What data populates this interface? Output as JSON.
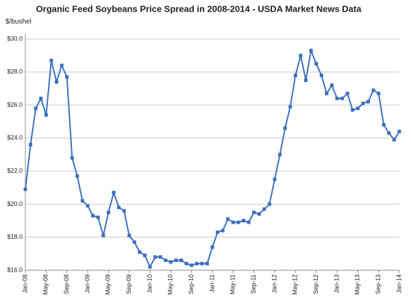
{
  "chart_data": {
    "type": "line",
    "title": "Organic Feed Soybeans Price Spread in 2008-2014 - USDA Market News Data",
    "y_axis_label": "$/bushel",
    "categories": [
      "Jan-08",
      null,
      null,
      null,
      "May-08",
      null,
      null,
      null,
      "Sep-08",
      null,
      null,
      null,
      "Jan-09",
      null,
      null,
      null,
      "May-09",
      null,
      null,
      null,
      "Sep-09",
      null,
      null,
      null,
      "Jan-10",
      null,
      null,
      null,
      "May-10",
      null,
      null,
      null,
      "Sep-10",
      null,
      null,
      null,
      "Jan-11",
      null,
      null,
      null,
      "May-11",
      null,
      null,
      null,
      "Sep-11",
      null,
      null,
      null,
      "Jan-12",
      null,
      null,
      null,
      "May-12",
      null,
      null,
      null,
      "Sep-12",
      null,
      null,
      null,
      "Jan-13",
      null,
      null,
      null,
      "May-13",
      null,
      null,
      null,
      "Sep-13",
      null,
      null,
      null,
      "Jan-14"
    ],
    "values": [
      20.9,
      23.6,
      25.8,
      26.4,
      25.4,
      28.7,
      27.4,
      28.4,
      27.7,
      22.8,
      21.7,
      20.2,
      19.9,
      19.3,
      19.2,
      18.1,
      19.5,
      20.7,
      19.8,
      19.6,
      18.1,
      17.7,
      17.1,
      16.9,
      16.2,
      16.8,
      16.8,
      16.6,
      16.5,
      16.6,
      16.6,
      16.4,
      16.3,
      16.4,
      16.4,
      16.4,
      17.4,
      18.3,
      18.4,
      19.1,
      18.9,
      18.9,
      19.0,
      18.9,
      19.5,
      19.4,
      19.7,
      20.0,
      21.5,
      23.0,
      24.6,
      25.9,
      27.8,
      29.0,
      27.5,
      29.3,
      28.5,
      27.8,
      26.7,
      27.2,
      26.4,
      26.4,
      26.7,
      25.7,
      25.8,
      26.1,
      26.2,
      26.9,
      26.7,
      24.8,
      24.3,
      23.9,
      24.4
    ],
    "color": "#3a6fbf",
    "ylim": [
      16,
      30
    ],
    "yticks": [
      {
        "value": 16,
        "label": "$16.0"
      },
      {
        "value": 18,
        "label": "$18.0"
      },
      {
        "value": 20,
        "label": "$20.0"
      },
      {
        "value": 22,
        "label": "$22.0"
      },
      {
        "value": 24,
        "label": "$24.0"
      },
      {
        "value": 26,
        "label": "$26.0"
      },
      {
        "value": 28,
        "label": "$28.0"
      },
      {
        "value": 30,
        "label": "$30.0"
      }
    ],
    "grid": true
  }
}
